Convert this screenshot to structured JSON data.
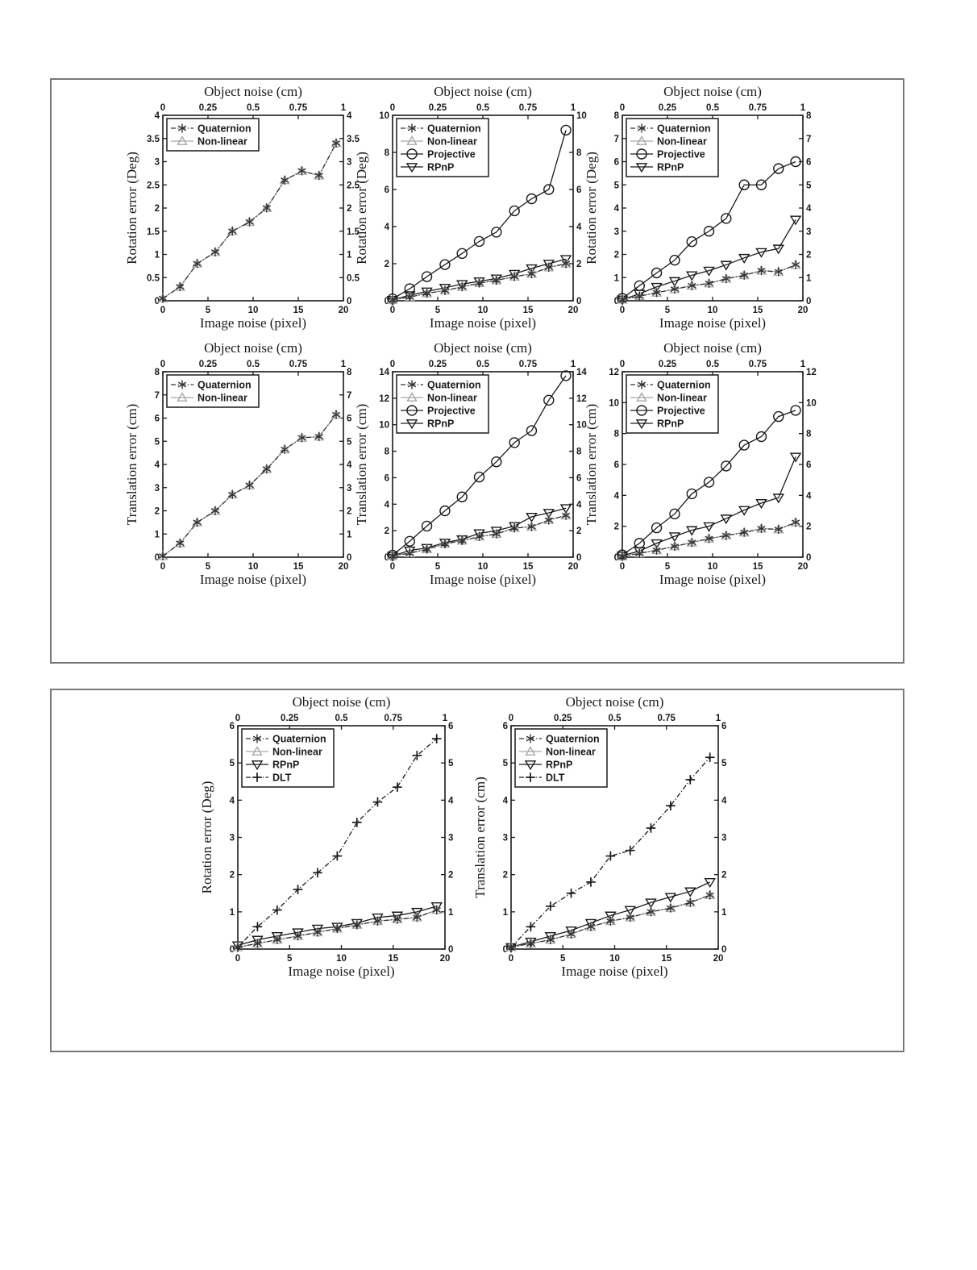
{
  "page": {
    "background": "#ffffff",
    "panel_border_color": "#787878",
    "ink_color": "#1a1a1a",
    "nonlinear_gray": "#a8a8a8",
    "quaternion_gray": "#333333"
  },
  "chart_data": [
    {
      "type": "line",
      "panel": 1,
      "top_label": "Object noise (cm)",
      "xlabel": "Image noise (pixel)",
      "ylabel": "Rotation error (Deg)",
      "xlim": [
        0,
        20
      ],
      "ylim": [
        0,
        4
      ],
      "top_lim": [
        0,
        1
      ],
      "xticks": [
        0,
        5,
        10,
        15,
        20
      ],
      "yticks": [
        0,
        0.5,
        1,
        1.5,
        2,
        2.5,
        3,
        3.5,
        4
      ],
      "top_ticks": [
        0,
        0.25,
        0.5,
        0.75,
        1
      ],
      "grid": false,
      "legend_position": "top-left",
      "x": [
        0,
        1.9,
        3.8,
        5.8,
        7.7,
        9.6,
        11.5,
        13.5,
        15.4,
        17.3,
        19.2
      ],
      "series": [
        {
          "name": "Quaternion",
          "marker": "asterisk",
          "linestyle": "dashdot",
          "color": "#333333",
          "values": [
            0.05,
            0.3,
            0.8,
            1.05,
            1.5,
            1.7,
            2.0,
            2.6,
            2.8,
            2.7,
            3.4
          ]
        },
        {
          "name": "Non-linear",
          "marker": "triangle-up",
          "linestyle": "solid",
          "color": "#a8a8a8",
          "values": [
            0.05,
            0.3,
            0.8,
            1.05,
            1.5,
            1.7,
            2.0,
            2.6,
            2.8,
            2.7,
            3.4
          ]
        }
      ]
    },
    {
      "type": "line",
      "panel": 1,
      "top_label": "Object noise (cm)",
      "xlabel": "Image noise (pixel)",
      "ylabel": "Rotation error (Deg)",
      "xlim": [
        0,
        20
      ],
      "ylim": [
        0,
        10
      ],
      "top_lim": [
        0,
        1
      ],
      "xticks": [
        0,
        5,
        10,
        15,
        20
      ],
      "yticks": [
        0,
        2,
        4,
        6,
        8,
        10
      ],
      "top_ticks": [
        0,
        0.25,
        0.5,
        0.75,
        1
      ],
      "grid": false,
      "legend_position": "top-left",
      "x": [
        0,
        1.9,
        3.8,
        5.8,
        7.7,
        9.6,
        11.5,
        13.5,
        15.4,
        17.3,
        19.2
      ],
      "series": [
        {
          "name": "Quaternion",
          "marker": "asterisk",
          "linestyle": "dashdot",
          "color": "#333333",
          "values": [
            0.05,
            0.2,
            0.4,
            0.55,
            0.75,
            0.95,
            1.1,
            1.3,
            1.45,
            1.8,
            2.0
          ]
        },
        {
          "name": "Non-linear",
          "marker": "triangle-up",
          "linestyle": "solid",
          "color": "#a8a8a8",
          "values": [
            0.05,
            0.2,
            0.4,
            0.55,
            0.75,
            0.95,
            1.1,
            1.3,
            1.45,
            1.8,
            2.0
          ]
        },
        {
          "name": "Projective",
          "marker": "circle",
          "linestyle": "solid",
          "color": "#1a1a1a",
          "values": [
            0.1,
            0.65,
            1.3,
            1.95,
            2.55,
            3.2,
            3.7,
            4.85,
            5.5,
            6.0,
            9.2
          ]
        },
        {
          "name": "RPnP",
          "marker": "triangle-down",
          "linestyle": "solid",
          "color": "#1a1a1a",
          "values": [
            0.05,
            0.3,
            0.5,
            0.7,
            0.9,
            1.05,
            1.2,
            1.45,
            1.75,
            2.0,
            2.25
          ]
        }
      ]
    },
    {
      "type": "line",
      "panel": 1,
      "top_label": "Object noise (cm)",
      "xlabel": "Image noise (pixel)",
      "ylabel": "Rotation error (Deg)",
      "xlim": [
        0,
        20
      ],
      "ylim": [
        0,
        8
      ],
      "top_lim": [
        0,
        1
      ],
      "xticks": [
        0,
        5,
        10,
        15,
        20
      ],
      "yticks": [
        0,
        1,
        2,
        3,
        4,
        5,
        6,
        7,
        8
      ],
      "top_ticks": [
        0,
        0.25,
        0.5,
        0.75,
        1
      ],
      "grid": false,
      "legend_position": "top-left",
      "x": [
        0,
        1.9,
        3.8,
        5.8,
        7.7,
        9.6,
        11.5,
        13.5,
        15.4,
        17.3,
        19.2
      ],
      "series": [
        {
          "name": "Quaternion",
          "marker": "asterisk",
          "linestyle": "dashdot",
          "color": "#333333",
          "values": [
            0.05,
            0.2,
            0.35,
            0.5,
            0.65,
            0.75,
            0.95,
            1.1,
            1.3,
            1.25,
            1.55
          ]
        },
        {
          "name": "Non-linear",
          "marker": "triangle-up",
          "linestyle": "solid",
          "color": "#a8a8a8",
          "values": [
            0.05,
            0.2,
            0.35,
            0.5,
            0.65,
            0.75,
            0.95,
            1.1,
            1.3,
            1.25,
            1.55
          ]
        },
        {
          "name": "Projective",
          "marker": "circle",
          "linestyle": "solid",
          "color": "#1a1a1a",
          "values": [
            0.1,
            0.65,
            1.2,
            1.75,
            2.55,
            3.0,
            3.55,
            5.0,
            5.0,
            5.7,
            6.0
          ]
        },
        {
          "name": "RPnP",
          "marker": "triangle-down",
          "linestyle": "solid",
          "color": "#1a1a1a",
          "values": [
            0.05,
            0.3,
            0.6,
            0.85,
            1.1,
            1.3,
            1.55,
            1.85,
            2.1,
            2.25,
            3.5
          ]
        }
      ]
    },
    {
      "type": "line",
      "panel": 1,
      "top_label": "Object noise (cm)",
      "xlabel": "Image noise (pixel)",
      "ylabel": "Translation error (cm)",
      "xlim": [
        0,
        20
      ],
      "ylim": [
        0,
        8
      ],
      "top_lim": [
        0,
        1
      ],
      "xticks": [
        0,
        5,
        10,
        15,
        20
      ],
      "yticks": [
        0,
        1,
        2,
        3,
        4,
        5,
        6,
        7,
        8
      ],
      "top_ticks": [
        0,
        0.25,
        0.5,
        0.75,
        1
      ],
      "grid": false,
      "legend_position": "top-left",
      "x": [
        0,
        1.9,
        3.8,
        5.8,
        7.7,
        9.6,
        11.5,
        13.5,
        15.4,
        17.3,
        19.2
      ],
      "series": [
        {
          "name": "Quaternion",
          "marker": "asterisk",
          "linestyle": "dashdot",
          "color": "#333333",
          "values": [
            0.05,
            0.6,
            1.5,
            2.0,
            2.7,
            3.1,
            3.8,
            4.65,
            5.15,
            5.2,
            6.15
          ]
        },
        {
          "name": "Non-linear",
          "marker": "triangle-up",
          "linestyle": "solid",
          "color": "#a8a8a8",
          "values": [
            0.05,
            0.6,
            1.5,
            2.0,
            2.7,
            3.1,
            3.8,
            4.65,
            5.15,
            5.2,
            6.15
          ]
        }
      ]
    },
    {
      "type": "line",
      "panel": 1,
      "top_label": "Object noise (cm)",
      "xlabel": "Image noise (pixel)",
      "ylabel": "Translation error (cm)",
      "xlim": [
        0,
        20
      ],
      "ylim": [
        0,
        14
      ],
      "top_lim": [
        0,
        1
      ],
      "xticks": [
        0,
        5,
        10,
        15,
        20
      ],
      "yticks": [
        0,
        2,
        4,
        6,
        8,
        10,
        12,
        14
      ],
      "top_ticks": [
        0,
        0.25,
        0.5,
        0.75,
        1
      ],
      "grid": false,
      "legend_position": "top-left",
      "x": [
        0,
        1.9,
        3.8,
        5.8,
        7.7,
        9.6,
        11.5,
        13.5,
        15.4,
        17.3,
        19.2
      ],
      "series": [
        {
          "name": "Quaternion",
          "marker": "asterisk",
          "linestyle": "dashdot",
          "color": "#333333",
          "values": [
            0.1,
            0.3,
            0.6,
            1.0,
            1.25,
            1.55,
            1.75,
            2.2,
            2.3,
            2.8,
            3.15
          ]
        },
        {
          "name": "Non-linear",
          "marker": "triangle-up",
          "linestyle": "solid",
          "color": "#a8a8a8",
          "values": [
            0.1,
            0.3,
            0.6,
            1.0,
            1.25,
            1.55,
            1.75,
            2.2,
            2.3,
            2.8,
            3.15
          ]
        },
        {
          "name": "Projective",
          "marker": "circle",
          "linestyle": "solid",
          "color": "#1a1a1a",
          "values": [
            0.15,
            1.2,
            2.35,
            3.5,
            4.55,
            6.05,
            7.2,
            8.65,
            9.55,
            11.85,
            13.7
          ]
        },
        {
          "name": "RPnP",
          "marker": "triangle-down",
          "linestyle": "solid",
          "color": "#1a1a1a",
          "values": [
            0.1,
            0.5,
            0.7,
            1.1,
            1.35,
            1.8,
            2.0,
            2.35,
            3.05,
            3.35,
            3.7
          ]
        }
      ]
    },
    {
      "type": "line",
      "panel": 1,
      "top_label": "Object noise (cm)",
      "xlabel": "Image noise (pixel)",
      "ylabel": "Translation error (cm)",
      "xlim": [
        0,
        20
      ],
      "ylim": [
        0,
        12
      ],
      "top_lim": [
        0,
        1
      ],
      "xticks": [
        0,
        5,
        10,
        15,
        20
      ],
      "yticks": [
        0,
        2,
        4,
        6,
        8,
        10,
        12
      ],
      "top_ticks": [
        0,
        0.25,
        0.5,
        0.75,
        1
      ],
      "grid": false,
      "legend_position": "top-left",
      "x": [
        0,
        1.9,
        3.8,
        5.8,
        7.7,
        9.6,
        11.5,
        13.5,
        15.4,
        17.3,
        19.2
      ],
      "series": [
        {
          "name": "Quaternion",
          "marker": "asterisk",
          "linestyle": "dashdot",
          "color": "#333333",
          "values": [
            0.05,
            0.25,
            0.45,
            0.7,
            0.95,
            1.2,
            1.4,
            1.6,
            1.85,
            1.8,
            2.25
          ]
        },
        {
          "name": "Non-linear",
          "marker": "triangle-up",
          "linestyle": "solid",
          "color": "#a8a8a8",
          "values": [
            0.05,
            0.25,
            0.45,
            0.7,
            0.95,
            1.2,
            1.4,
            1.6,
            1.85,
            1.8,
            2.25
          ]
        },
        {
          "name": "Projective",
          "marker": "circle",
          "linestyle": "solid",
          "color": "#1a1a1a",
          "values": [
            0.15,
            0.9,
            1.9,
            2.8,
            4.1,
            4.85,
            5.9,
            7.25,
            7.8,
            9.1,
            9.5
          ]
        },
        {
          "name": "RPnP",
          "marker": "triangle-down",
          "linestyle": "solid",
          "color": "#1a1a1a",
          "values": [
            0.1,
            0.4,
            0.9,
            1.35,
            1.75,
            2.0,
            2.5,
            3.05,
            3.5,
            3.85,
            6.5
          ]
        }
      ]
    },
    {
      "type": "line",
      "panel": 2,
      "top_label": "Object noise (cm)",
      "xlabel": "Image noise (pixel)",
      "ylabel": "Rotation error (Deg)",
      "xlim": [
        0,
        20
      ],
      "ylim": [
        0,
        6
      ],
      "top_lim": [
        0,
        1
      ],
      "xticks": [
        0,
        5,
        10,
        15,
        20
      ],
      "yticks": [
        0,
        1,
        2,
        3,
        4,
        5,
        6
      ],
      "top_ticks": [
        0,
        0.25,
        0.5,
        0.75,
        1
      ],
      "grid": false,
      "legend_position": "top-left",
      "x": [
        0,
        1.9,
        3.8,
        5.8,
        7.7,
        9.6,
        11.5,
        13.5,
        15.4,
        17.3,
        19.2
      ],
      "series": [
        {
          "name": "Quaternion",
          "marker": "asterisk",
          "linestyle": "dashdot",
          "color": "#333333",
          "values": [
            0.05,
            0.15,
            0.25,
            0.35,
            0.45,
            0.55,
            0.65,
            0.75,
            0.8,
            0.85,
            1.05
          ]
        },
        {
          "name": "Non-linear",
          "marker": "triangle-up",
          "linestyle": "solid",
          "color": "#a8a8a8",
          "values": [
            0.05,
            0.15,
            0.25,
            0.35,
            0.45,
            0.55,
            0.65,
            0.75,
            0.8,
            0.85,
            1.05
          ]
        },
        {
          "name": "RPnP",
          "marker": "triangle-down",
          "linestyle": "solid",
          "color": "#1a1a1a",
          "values": [
            0.1,
            0.25,
            0.35,
            0.45,
            0.55,
            0.6,
            0.7,
            0.85,
            0.9,
            1.0,
            1.15
          ]
        },
        {
          "name": "DLT",
          "marker": "plus",
          "linestyle": "dashdot",
          "color": "#1a1a1a",
          "values": [
            0.05,
            0.6,
            1.05,
            1.6,
            2.05,
            2.5,
            3.4,
            3.95,
            4.35,
            5.2,
            5.65
          ]
        }
      ]
    },
    {
      "type": "line",
      "panel": 2,
      "top_label": "Object noise (cm)",
      "xlabel": "Image noise (pixel)",
      "ylabel": "Translation error (cm)",
      "xlim": [
        0,
        20
      ],
      "ylim": [
        0,
        6
      ],
      "top_lim": [
        0,
        1
      ],
      "xticks": [
        0,
        5,
        10,
        15,
        20
      ],
      "yticks": [
        0,
        1,
        2,
        3,
        4,
        5,
        6
      ],
      "top_ticks": [
        0,
        0.25,
        0.5,
        0.75,
        1
      ],
      "grid": false,
      "legend_position": "top-left",
      "x": [
        0,
        1.9,
        3.8,
        5.8,
        7.7,
        9.6,
        11.5,
        13.5,
        15.4,
        17.3,
        19.2
      ],
      "series": [
        {
          "name": "Quaternion",
          "marker": "asterisk",
          "linestyle": "dashdot",
          "color": "#333333",
          "values": [
            0.05,
            0.15,
            0.25,
            0.4,
            0.6,
            0.75,
            0.85,
            1.0,
            1.1,
            1.25,
            1.45
          ]
        },
        {
          "name": "Non-linear",
          "marker": "triangle-up",
          "linestyle": "solid",
          "color": "#a8a8a8",
          "values": [
            0.05,
            0.15,
            0.25,
            0.4,
            0.6,
            0.75,
            0.85,
            1.0,
            1.1,
            1.25,
            1.45
          ]
        },
        {
          "name": "RPnP",
          "marker": "triangle-down",
          "linestyle": "solid",
          "color": "#1a1a1a",
          "values": [
            0.05,
            0.2,
            0.35,
            0.5,
            0.7,
            0.9,
            1.05,
            1.25,
            1.4,
            1.55,
            1.8
          ]
        },
        {
          "name": "DLT",
          "marker": "plus",
          "linestyle": "dashdot",
          "color": "#1a1a1a",
          "values": [
            0.05,
            0.6,
            1.15,
            1.5,
            1.8,
            2.5,
            2.65,
            3.25,
            3.85,
            4.55,
            5.15
          ]
        }
      ]
    }
  ]
}
